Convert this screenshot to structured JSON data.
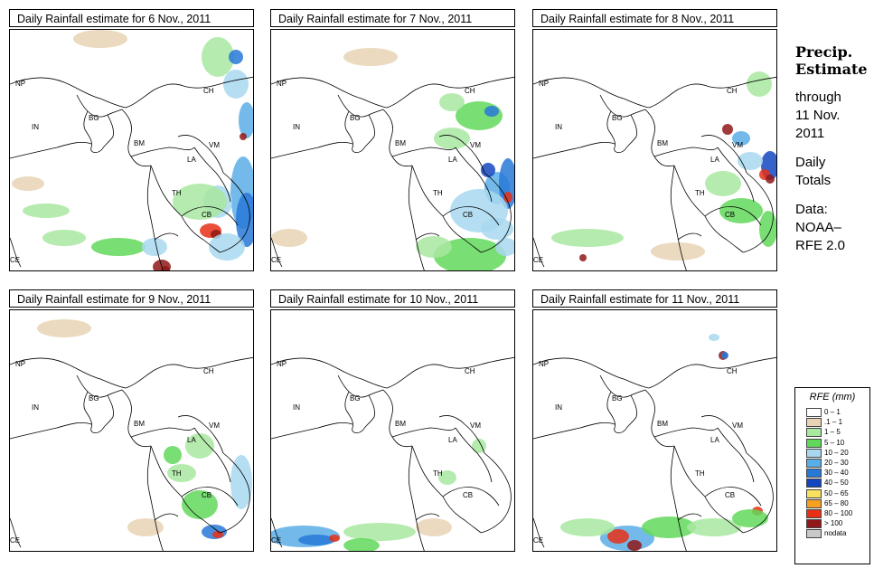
{
  "panels": [
    {
      "title": "Daily Rainfall estimate for  6 Nov., 2011"
    },
    {
      "title": "Daily Rainfall estimate for  7 Nov., 2011"
    },
    {
      "title": "Daily Rainfall estimate for  8 Nov., 2011"
    },
    {
      "title": "Daily Rainfall estimate for  9 Nov., 2011"
    },
    {
      "title": "Daily Rainfall estimate for  10 Nov., 2011"
    },
    {
      "title": "Daily Rainfall estimate for  11 Nov., 2011"
    }
  ],
  "country_labels": [
    "NP",
    "CH",
    "IN",
    "BG",
    "BM",
    "VM",
    "LA",
    "TH",
    "CB",
    "CE"
  ],
  "side": {
    "heading1": "Precip.",
    "heading2": "Estimate",
    "line1": "through",
    "line2": "11 Nov.",
    "line3": "2011",
    "line4": "Daily",
    "line5": "Totals",
    "line6": "Data:",
    "line7": "NOAA–",
    "line8": "RFE 2.0"
  },
  "legend": {
    "title": "RFE (mm)",
    "items": [
      {
        "label": "0 – 1",
        "color": "#ffffff"
      },
      {
        "label": ".1 – 1",
        "color": "#e8d4b4"
      },
      {
        "label": "1 – 5",
        "color": "#a8e8a0"
      },
      {
        "label": "5 – 10",
        "color": "#62d85a"
      },
      {
        "label": "10 – 20",
        "color": "#a8d8f0"
      },
      {
        "label": "20 – 30",
        "color": "#5aaee8"
      },
      {
        "label": "30 – 40",
        "color": "#2878d8"
      },
      {
        "label": "40 – 50",
        "color": "#1446c0"
      },
      {
        "label": "50 – 65",
        "color": "#f8e060"
      },
      {
        "label": "65 – 80",
        "color": "#f8a020"
      },
      {
        "label": "80 – 100",
        "color": "#e83018"
      },
      {
        "label": "> 100",
        "color": "#901818"
      },
      {
        "label": "nodata",
        "color": "#c8c8c8"
      }
    ]
  }
}
